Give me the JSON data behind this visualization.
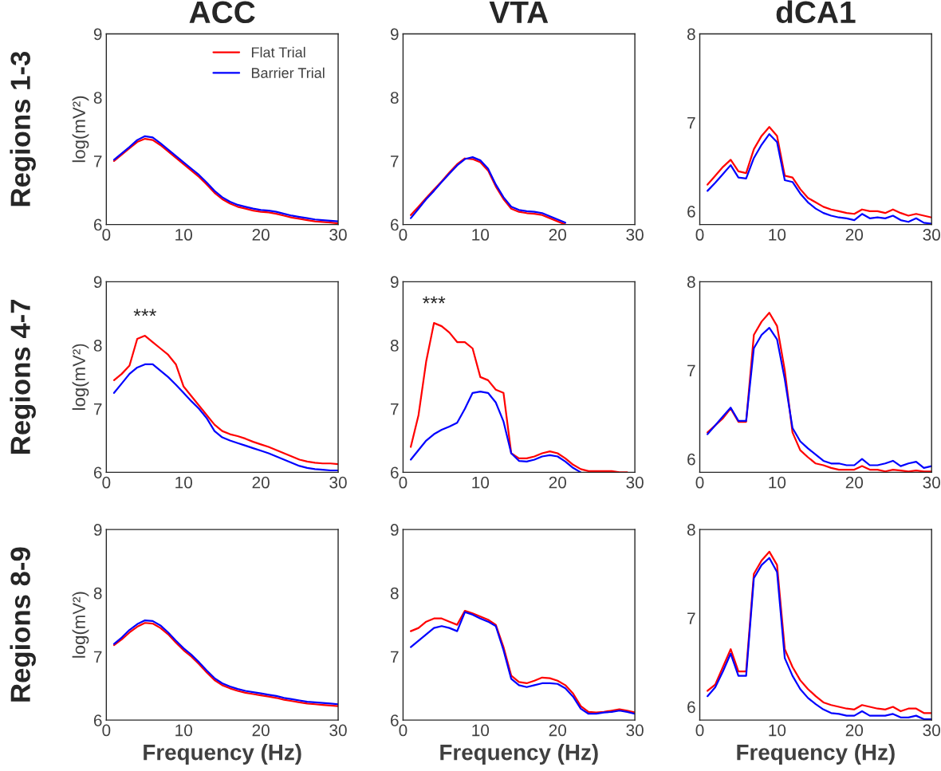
{
  "chart_data": [
    {
      "type": "line",
      "title": "ACC",
      "ylabel": "log(mV²)",
      "annotations": [
        "Regions 1-3"
      ],
      "legend": "top right",
      "xlim": [
        0,
        30
      ],
      "ylim": [
        6,
        9
      ],
      "xticks": [
        0,
        10,
        20,
        30
      ],
      "yticks": [
        6,
        7,
        8,
        9
      ],
      "x": [
        1,
        2,
        3,
        4,
        5,
        6,
        7,
        8,
        9,
        10,
        11,
        12,
        13,
        14,
        15,
        16,
        17,
        18,
        19,
        20,
        21,
        22,
        23,
        24,
        25,
        26,
        27,
        28,
        29,
        30
      ],
      "series": [
        {
          "name": "Flat Trial",
          "color": "#ff0000",
          "values": [
            7.0,
            7.1,
            7.2,
            7.3,
            7.35,
            7.33,
            7.25,
            7.15,
            7.05,
            6.95,
            6.85,
            6.75,
            6.63,
            6.5,
            6.4,
            6.33,
            6.28,
            6.25,
            6.22,
            6.2,
            6.19,
            6.17,
            6.14,
            6.11,
            6.09,
            6.07,
            6.05,
            6.04,
            6.03,
            6.02
          ]
        },
        {
          "name": "Barrier Trial",
          "color": "#0000ff",
          "values": [
            7.02,
            7.12,
            7.22,
            7.33,
            7.39,
            7.37,
            7.28,
            7.18,
            7.08,
            6.98,
            6.88,
            6.78,
            6.66,
            6.53,
            6.43,
            6.36,
            6.31,
            6.28,
            6.25,
            6.23,
            6.22,
            6.2,
            6.17,
            6.14,
            6.12,
            6.1,
            6.08,
            6.07,
            6.06,
            6.05
          ]
        }
      ]
    },
    {
      "type": "line",
      "title": "VTA",
      "xlim": [
        0,
        30
      ],
      "ylim": [
        6,
        9
      ],
      "xticks": [
        0,
        10,
        20,
        30
      ],
      "yticks": [
        6,
        7,
        8,
        9
      ],
      "x": [
        1,
        2,
        3,
        4,
        5,
        6,
        7,
        8,
        9,
        10,
        11,
        12,
        13,
        14,
        15,
        16,
        17,
        18,
        19,
        20,
        21
      ],
      "series": [
        {
          "color": "#ff0000",
          "values": [
            6.15,
            6.28,
            6.42,
            6.55,
            6.68,
            6.82,
            6.95,
            7.04,
            7.03,
            6.98,
            6.85,
            6.6,
            6.4,
            6.25,
            6.2,
            6.18,
            6.17,
            6.15,
            6.1,
            6.05,
            6.0
          ]
        },
        {
          "color": "#0000ff",
          "values": [
            6.1,
            6.25,
            6.4,
            6.53,
            6.67,
            6.8,
            6.93,
            7.03,
            7.06,
            7.01,
            6.88,
            6.63,
            6.43,
            6.28,
            6.23,
            6.21,
            6.2,
            6.18,
            6.13,
            6.08,
            6.03
          ]
        }
      ]
    },
    {
      "type": "line",
      "title": "dCA1",
      "xlim": [
        0,
        30
      ],
      "ylim": [
        5.85,
        8
      ],
      "xticks": [
        0,
        10,
        20,
        30
      ],
      "yticks": [
        6,
        7,
        8
      ],
      "x": [
        1,
        2,
        3,
        4,
        5,
        6,
        7,
        8,
        9,
        10,
        11,
        12,
        13,
        14,
        15,
        16,
        17,
        18,
        19,
        20,
        21,
        22,
        23,
        24,
        25,
        26,
        27,
        28,
        29,
        30
      ],
      "series": [
        {
          "color": "#ff0000",
          "values": [
            6.3,
            6.4,
            6.5,
            6.58,
            6.45,
            6.43,
            6.7,
            6.85,
            6.95,
            6.85,
            6.4,
            6.38,
            6.25,
            6.15,
            6.1,
            6.05,
            6.02,
            6.0,
            5.98,
            5.97,
            6.02,
            6.0,
            6.0,
            5.98,
            6.02,
            5.98,
            5.95,
            5.97,
            5.95,
            5.93
          ]
        },
        {
          "color": "#0000ff",
          "values": [
            6.23,
            6.32,
            6.42,
            6.52,
            6.38,
            6.37,
            6.6,
            6.75,
            6.87,
            6.78,
            6.35,
            6.33,
            6.2,
            6.1,
            6.03,
            5.98,
            5.95,
            5.93,
            5.92,
            5.9,
            5.97,
            5.92,
            5.93,
            5.92,
            5.95,
            5.9,
            5.88,
            5.92,
            5.87,
            5.86
          ]
        }
      ]
    },
    {
      "type": "line",
      "ylabel": "log(mV²)",
      "annotations": [
        "Regions 4-7",
        "***"
      ],
      "xlim": [
        0,
        30
      ],
      "ylim": [
        6,
        9
      ],
      "xticks": [
        0,
        10,
        20,
        30
      ],
      "yticks": [
        6,
        7,
        8,
        9
      ],
      "x": [
        1,
        2,
        3,
        4,
        5,
        6,
        7,
        8,
        9,
        10,
        11,
        12,
        13,
        14,
        15,
        16,
        17,
        18,
        19,
        20,
        21,
        22,
        23,
        24,
        25,
        26,
        27,
        28,
        29,
        30
      ],
      "series": [
        {
          "color": "#ff0000",
          "values": [
            7.45,
            7.55,
            7.68,
            8.1,
            8.15,
            8.05,
            7.95,
            7.85,
            7.7,
            7.35,
            7.2,
            7.05,
            6.9,
            6.75,
            6.65,
            6.6,
            6.57,
            6.53,
            6.48,
            6.44,
            6.4,
            6.35,
            6.3,
            6.25,
            6.2,
            6.17,
            6.15,
            6.14,
            6.14,
            6.13
          ]
        },
        {
          "color": "#0000ff",
          "values": [
            7.25,
            7.4,
            7.55,
            7.65,
            7.7,
            7.7,
            7.6,
            7.5,
            7.38,
            7.25,
            7.12,
            7.0,
            6.85,
            6.65,
            6.55,
            6.5,
            6.46,
            6.42,
            6.38,
            6.34,
            6.3,
            6.25,
            6.2,
            6.15,
            6.1,
            6.07,
            6.05,
            6.04,
            6.03,
            6.03
          ]
        }
      ]
    },
    {
      "type": "line",
      "annotations": [
        "***"
      ],
      "xlim": [
        0,
        30
      ],
      "ylim": [
        6,
        9
      ],
      "xticks": [
        0,
        10,
        20,
        30
      ],
      "yticks": [
        6,
        7,
        8,
        9
      ],
      "x": [
        1,
        2,
        3,
        4,
        5,
        6,
        7,
        8,
        9,
        10,
        11,
        12,
        13,
        14,
        15,
        16,
        17,
        18,
        19,
        20,
        21,
        22,
        23,
        24,
        25,
        26,
        27,
        28,
        29
      ],
      "series": [
        {
          "color": "#ff0000",
          "values": [
            6.4,
            6.9,
            7.75,
            8.35,
            8.3,
            8.2,
            8.05,
            8.05,
            7.95,
            7.5,
            7.45,
            7.3,
            7.25,
            6.3,
            6.22,
            6.22,
            6.25,
            6.3,
            6.33,
            6.3,
            6.22,
            6.12,
            6.05,
            6.02,
            6.02,
            6.02,
            6.02,
            6.0,
            6.0
          ]
        },
        {
          "color": "#0000ff",
          "values": [
            6.2,
            6.35,
            6.5,
            6.6,
            6.67,
            6.72,
            6.78,
            7.0,
            7.25,
            7.27,
            7.25,
            7.1,
            6.8,
            6.3,
            6.18,
            6.17,
            6.2,
            6.25,
            6.27,
            6.25,
            6.17,
            6.07,
            6.0,
            null,
            null,
            null,
            null,
            null,
            null
          ]
        }
      ]
    },
    {
      "type": "line",
      "xlim": [
        0,
        30
      ],
      "ylim": [
        5.85,
        8
      ],
      "xticks": [
        0,
        10,
        20,
        30
      ],
      "yticks": [
        6,
        7,
        8
      ],
      "x": [
        1,
        2,
        3,
        4,
        5,
        6,
        7,
        8,
        9,
        10,
        11,
        12,
        13,
        14,
        15,
        16,
        17,
        18,
        19,
        20,
        21,
        22,
        23,
        24,
        25,
        26,
        27,
        28,
        29,
        30
      ],
      "series": [
        {
          "color": "#ff0000",
          "values": [
            6.3,
            6.38,
            6.46,
            6.57,
            6.42,
            6.42,
            7.4,
            7.55,
            7.65,
            7.5,
            7.0,
            6.3,
            6.1,
            6.02,
            5.95,
            5.93,
            5.9,
            5.88,
            5.88,
            5.88,
            5.92,
            5.88,
            5.88,
            5.86,
            5.88,
            5.87,
            5.86,
            5.87,
            5.86,
            5.86
          ]
        },
        {
          "color": "#0000ff",
          "values": [
            6.28,
            6.38,
            6.48,
            6.58,
            6.43,
            6.43,
            7.25,
            7.4,
            7.48,
            7.35,
            6.9,
            6.35,
            6.2,
            6.12,
            6.05,
            5.98,
            5.95,
            5.95,
            5.93,
            5.93,
            6.0,
            5.93,
            5.93,
            5.95,
            5.98,
            5.92,
            5.95,
            5.97,
            5.9,
            5.92
          ]
        }
      ]
    },
    {
      "type": "line",
      "ylabel": "log(mV²)",
      "xlabel": "Frequency (Hz)",
      "annotations": [
        "Regions 8-9"
      ],
      "xlim": [
        0,
        30
      ],
      "ylim": [
        6,
        9
      ],
      "xticks": [
        0,
        10,
        20,
        30
      ],
      "yticks": [
        6,
        7,
        8,
        9
      ],
      "x": [
        1,
        2,
        3,
        4,
        5,
        6,
        7,
        8,
        9,
        10,
        11,
        12,
        13,
        14,
        15,
        16,
        17,
        18,
        19,
        20,
        21,
        22,
        23,
        24,
        25,
        26,
        27,
        28,
        29,
        30
      ],
      "series": [
        {
          "color": "#ff0000",
          "values": [
            7.18,
            7.27,
            7.38,
            7.47,
            7.53,
            7.52,
            7.45,
            7.35,
            7.22,
            7.1,
            7.0,
            6.88,
            6.75,
            6.63,
            6.55,
            6.5,
            6.46,
            6.43,
            6.41,
            6.39,
            6.37,
            6.35,
            6.32,
            6.3,
            6.28,
            6.26,
            6.25,
            6.24,
            6.23,
            6.22
          ]
        },
        {
          "color": "#0000ff",
          "values": [
            7.2,
            7.3,
            7.42,
            7.51,
            7.57,
            7.56,
            7.49,
            7.38,
            7.25,
            7.13,
            7.03,
            6.91,
            6.78,
            6.66,
            6.58,
            6.53,
            6.49,
            6.46,
            6.44,
            6.42,
            6.4,
            6.38,
            6.35,
            6.33,
            6.31,
            6.29,
            6.28,
            6.27,
            6.26,
            6.25
          ]
        }
      ]
    },
    {
      "type": "line",
      "xlabel": "Frequency (Hz)",
      "xlim": [
        0,
        30
      ],
      "ylim": [
        6,
        9
      ],
      "xticks": [
        0,
        10,
        20,
        30
      ],
      "yticks": [
        6,
        7,
        8,
        9
      ],
      "x": [
        1,
        2,
        3,
        4,
        5,
        6,
        7,
        8,
        9,
        10,
        11,
        12,
        13,
        14,
        15,
        16,
        17,
        18,
        19,
        20,
        21,
        22,
        23,
        24,
        25,
        26,
        27,
        28,
        29,
        30
      ],
      "series": [
        {
          "color": "#ff0000",
          "values": [
            7.4,
            7.45,
            7.55,
            7.6,
            7.6,
            7.55,
            7.5,
            7.72,
            7.68,
            7.63,
            7.58,
            7.5,
            7.15,
            6.7,
            6.6,
            6.58,
            6.62,
            6.67,
            6.66,
            6.62,
            6.55,
            6.42,
            6.22,
            6.13,
            6.12,
            6.13,
            6.15,
            6.17,
            6.15,
            6.12
          ]
        },
        {
          "color": "#0000ff",
          "values": [
            7.15,
            7.25,
            7.35,
            7.45,
            7.48,
            7.45,
            7.4,
            7.7,
            7.66,
            7.6,
            7.55,
            7.48,
            7.1,
            6.65,
            6.55,
            6.52,
            6.55,
            6.58,
            6.58,
            6.57,
            6.5,
            6.37,
            6.18,
            6.1,
            6.1,
            6.12,
            6.13,
            6.15,
            6.13,
            6.1
          ]
        }
      ]
    },
    {
      "type": "line",
      "xlabel": "Frequency (Hz)",
      "xlim": [
        0,
        30
      ],
      "ylim": [
        5.85,
        8
      ],
      "xticks": [
        0,
        10,
        20,
        30
      ],
      "yticks": [
        6,
        7,
        8
      ],
      "x": [
        1,
        2,
        3,
        4,
        5,
        6,
        7,
        8,
        9,
        10,
        11,
        12,
        13,
        14,
        15,
        16,
        17,
        18,
        19,
        20,
        21,
        22,
        23,
        24,
        25,
        26,
        27,
        28,
        29,
        30
      ],
      "series": [
        {
          "color": "#ff0000",
          "values": [
            6.18,
            6.25,
            6.45,
            6.65,
            6.4,
            6.4,
            7.5,
            7.65,
            7.75,
            7.6,
            6.65,
            6.45,
            6.3,
            6.2,
            6.12,
            6.05,
            6.02,
            6.0,
            5.98,
            5.97,
            6.02,
            6.0,
            5.98,
            5.97,
            6.0,
            5.95,
            5.98,
            5.98,
            5.93,
            5.93
          ]
        },
        {
          "color": "#0000ff",
          "values": [
            6.12,
            6.22,
            6.4,
            6.6,
            6.35,
            6.35,
            7.45,
            7.6,
            7.68,
            7.52,
            6.55,
            6.35,
            6.2,
            6.1,
            6.03,
            5.97,
            5.93,
            5.92,
            5.9,
            5.9,
            5.95,
            5.9,
            5.9,
            5.9,
            5.92,
            5.88,
            5.88,
            5.9,
            5.86,
            5.86
          ]
        }
      ]
    }
  ]
}
